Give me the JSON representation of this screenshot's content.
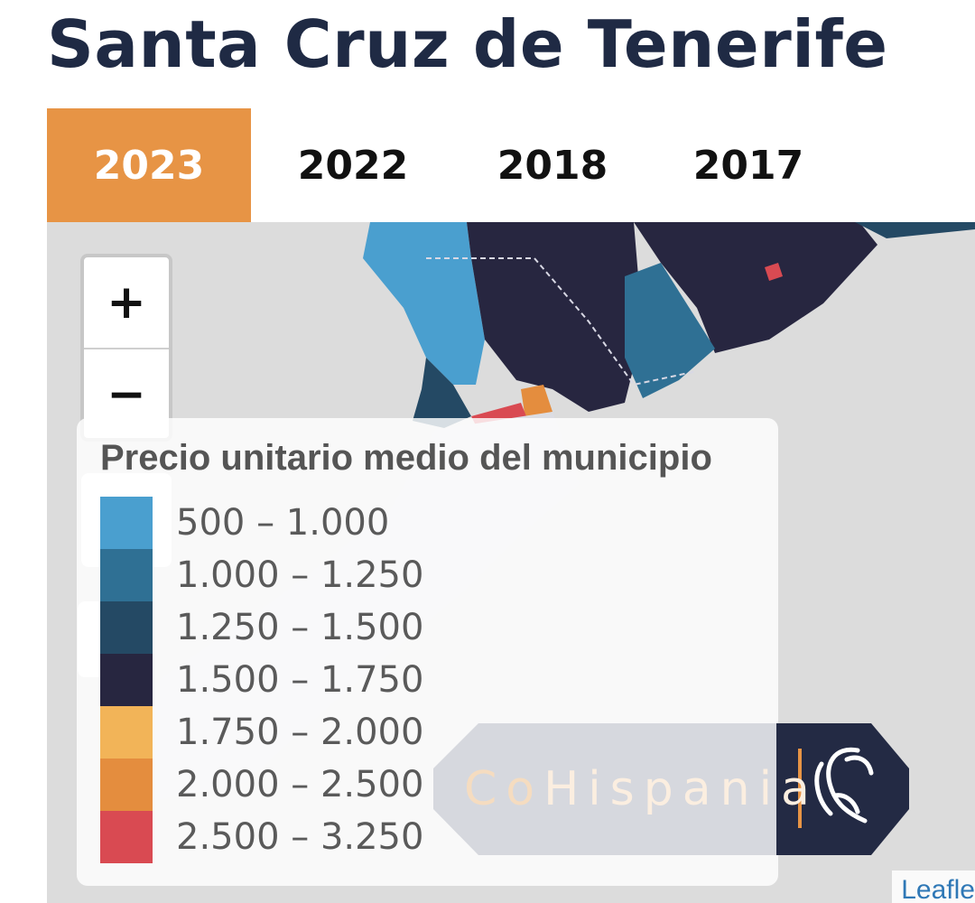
{
  "page": {
    "title": "Santa Cruz de Tenerife"
  },
  "tabs": [
    {
      "label": "2023",
      "active": true
    },
    {
      "label": "2022",
      "active": false
    },
    {
      "label": "2018",
      "active": false
    },
    {
      "label": "2017",
      "active": false
    }
  ],
  "map": {
    "zoom": {
      "in_label": "+",
      "out_label": "−"
    },
    "legend": {
      "title": "Precio unitario medio del municipio",
      "items": [
        {
          "label": "500 – 1.000",
          "color": "#4a9fcf"
        },
        {
          "label": "1.000 – 1.250",
          "color": "#2f7094"
        },
        {
          "label": "1.250 – 1.500",
          "color": "#244964"
        },
        {
          "label": "1.500 – 1.750",
          "color": "#272640"
        },
        {
          "label": "1.750 – 2.000",
          "color": "#f2b458"
        },
        {
          "label": "2.000 – 2.500",
          "color": "#e48d3e"
        },
        {
          "label": "2.500 – 3.250",
          "color": "#d94a52"
        }
      ]
    },
    "watermark": {
      "brand_prefix": "Co",
      "brand_suffix": "Hispania",
      "logo_icon": "ibex-icon"
    },
    "attribution": "Leafle"
  }
}
